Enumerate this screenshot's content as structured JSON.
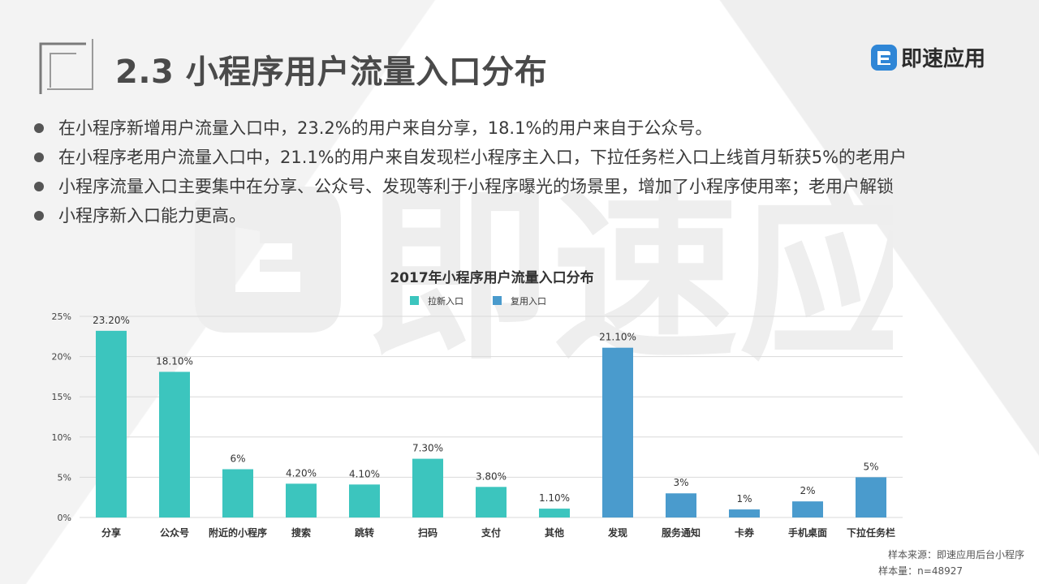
{
  "header": {
    "title": "2.3 小程序用户流量入口分布",
    "logo_text": "即速应用",
    "watermark_text": "即速应用"
  },
  "bullets": [
    "在小程序新增用户流量入口中，23.2%的用户来自分享，18.1%的用户来自于公众号。",
    "在小程序老用户流量入口中，21.1%的用户来自发现栏小程序主入口，下拉任务栏入口上线首月斩获5%的老用户",
    "小程序流量入口主要集中在分享、公众号、发现等利于小程序曝光的场景里，增加了小程序使用率；老用户解锁",
    "小程序新入口能力更高。"
  ],
  "colors": {
    "new": "#3cc5be",
    "old": "#4a9bcd",
    "grid": "#d9d9d9",
    "text": "#333333"
  },
  "chart_data": {
    "type": "bar",
    "title": "2017年小程序用户流量入口分布",
    "legend": [
      {
        "name": "拉新入口",
        "color": "#3cc5be"
      },
      {
        "name": "复用入口",
        "color": "#4a9bcd"
      }
    ],
    "legend_position": "top-center",
    "grid": true,
    "ylim": [
      0,
      25
    ],
    "yticks": [
      0,
      5,
      10,
      15,
      20,
      25
    ],
    "ytick_labels": [
      "0%",
      "5%",
      "10%",
      "15%",
      "20%",
      "25%"
    ],
    "categories": [
      "分享",
      "公众号",
      "附近的小程序",
      "搜索",
      "跳转",
      "扫码",
      "支付",
      "其他",
      "发现",
      "服务通知",
      "卡券",
      "手机桌面",
      "下拉任务栏"
    ],
    "values": [
      23.2,
      18.1,
      6,
      4.2,
      4.1,
      7.3,
      3.8,
      1.1,
      21.1,
      3,
      1,
      2,
      5
    ],
    "labels": [
      "23.20%",
      "18.10%",
      "6%",
      "4.20%",
      "4.10%",
      "7.30%",
      "3.80%",
      "1.10%",
      "21.10%",
      "3%",
      "1%",
      "2%",
      "5%"
    ],
    "groups": [
      "new",
      "new",
      "new",
      "new",
      "new",
      "new",
      "new",
      "new",
      "old",
      "old",
      "old",
      "old",
      "old"
    ]
  },
  "footer": {
    "source": "样本来源：即速应用后台小程序",
    "sample": "样本量：n=48927"
  }
}
